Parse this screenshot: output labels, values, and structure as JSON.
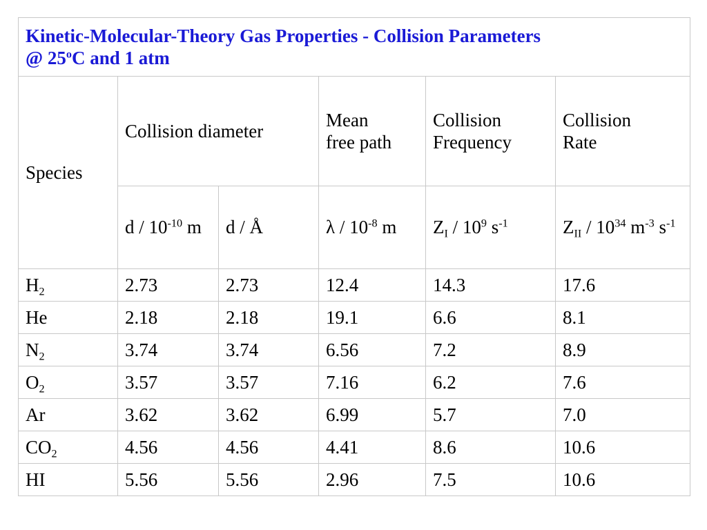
{
  "title": {
    "line1": "Kinetic-Molecular-Theory Gas Properties - Collision Parameters",
    "line2_prefix": "@ 25",
    "line2_sup": "o",
    "line2_suffix": "C and 1 atm"
  },
  "headers": {
    "species": "Species",
    "collision_diameter": "Collision diameter",
    "mean_free_path": {
      "line1": "Mean",
      "line2": "free path"
    },
    "collision_frequency": {
      "line1": "Collision",
      "line2": "Frequency"
    },
    "collision_rate": {
      "line1": "Collision",
      "line2": "Rate"
    }
  },
  "units": {
    "d_m": {
      "prefix": "d / 10",
      "sup": "-10",
      "suffix": " m"
    },
    "d_angstrom": "d / Å",
    "lambda": {
      "prefix": "λ / 10",
      "sup": "-8",
      "suffix": " m"
    },
    "z1": {
      "prefix": "Z",
      "sub": "I",
      "mid": " / 10",
      "sup1": "9",
      "tail": " s",
      "sup2": "-1"
    },
    "z11": {
      "prefix": "Z",
      "sub": "II",
      "mid": " / 10",
      "sup1": "34",
      "mid2": " m",
      "sup2": "-3",
      "tail": " s",
      "sup3": "-1"
    }
  },
  "rows": [
    {
      "base": "H",
      "sub": "2",
      "d_m": "2.73",
      "d_a": "2.73",
      "lambda": "12.4",
      "z1": "14.3",
      "z11": "17.6"
    },
    {
      "base": "He",
      "sub": "",
      "d_m": "2.18",
      "d_a": "2.18",
      "lambda": "19.1",
      "z1": "6.6",
      "z11": "8.1"
    },
    {
      "base": "N",
      "sub": "2",
      "d_m": "3.74",
      "d_a": "3.74",
      "lambda": "6.56",
      "z1": "7.2",
      "z11": "8.9"
    },
    {
      "base": "O",
      "sub": "2",
      "d_m": "3.57",
      "d_a": "3.57",
      "lambda": "7.16",
      "z1": "6.2",
      "z11": "7.6"
    },
    {
      "base": "Ar",
      "sub": "",
      "d_m": "3.62",
      "d_a": "3.62",
      "lambda": "6.99",
      "z1": "5.7",
      "z11": "7.0"
    },
    {
      "base": "CO",
      "sub": "2",
      "d_m": "4.56",
      "d_a": "4.56",
      "lambda": "4.41",
      "z1": "8.6",
      "z11": "10.6"
    },
    {
      "base": "HI",
      "sub": "",
      "d_m": "5.56",
      "d_a": "5.56",
      "lambda": "2.96",
      "z1": "7.5",
      "z11": "10.6"
    }
  ],
  "colors": {
    "title": "#1a1ad6",
    "border": "#c8c8c8"
  }
}
